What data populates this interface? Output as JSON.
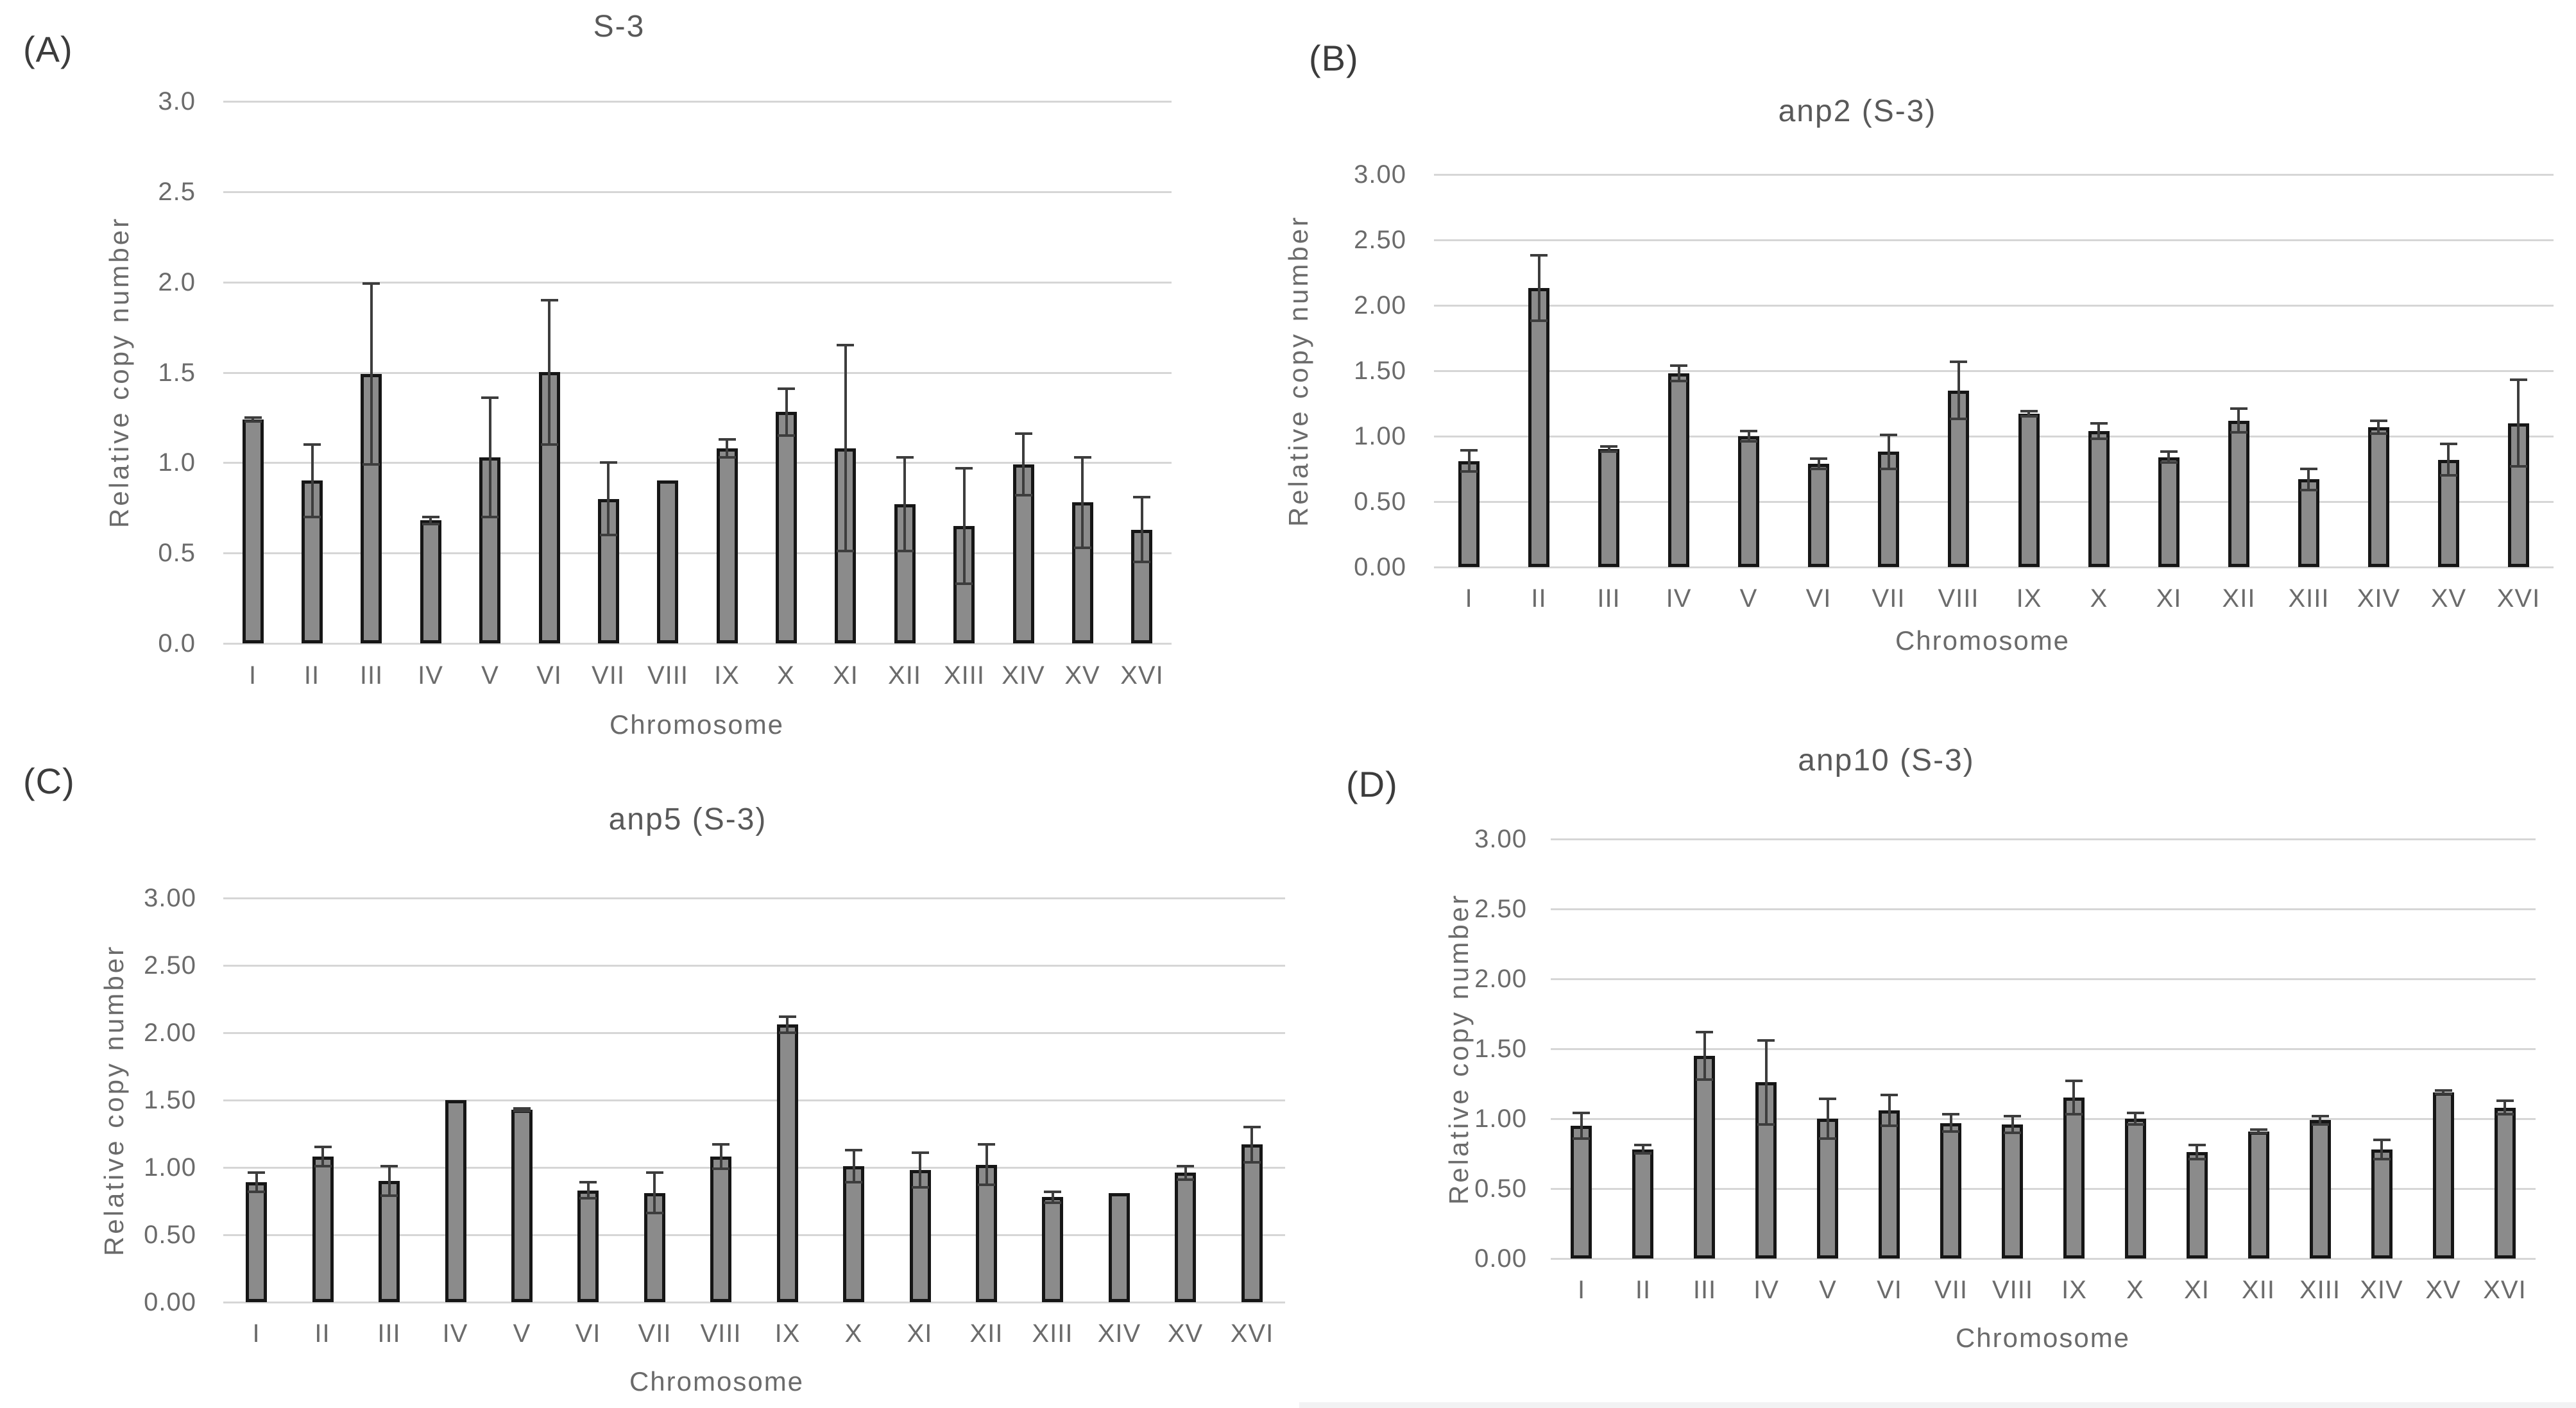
{
  "figure": {
    "background": "#ffffff"
  },
  "colors": {
    "bar_fill": "#8b8b8b",
    "bar_border": "#161616",
    "error_bar": "#3d3d3d",
    "gridline": "#d6d6d6",
    "tick_text": "#6b6b6b",
    "title_text": "#595959",
    "panel_label_text": "#3c3c3c",
    "footer_strip": "#f2f2f3"
  },
  "chart_data": [
    {
      "panel_label": "(A)",
      "type": "bar",
      "title": "S-3",
      "xlabel": "Chromosome",
      "ylabel": "Relative copy number",
      "ylim": [
        0,
        3
      ],
      "grid": true,
      "legend": "none",
      "ytick_labels": [
        "3.0",
        "2.5",
        "2.0",
        "1.5",
        "1.0",
        "0.5",
        "0.0"
      ],
      "categories": [
        "I",
        "II",
        "III",
        "IV",
        "V",
        "VI",
        "VII",
        "VIII",
        "IX",
        "X",
        "XI",
        "XII",
        "XIII",
        "XIV",
        "XV",
        "XVI"
      ],
      "values": [
        1.24,
        0.9,
        1.49,
        0.68,
        1.03,
        1.5,
        0.8,
        0.9,
        1.08,
        1.28,
        1.08,
        0.77,
        0.65,
        0.99,
        0.78,
        0.63
      ],
      "errors": [
        0.01,
        0.2,
        0.5,
        0.02,
        0.33,
        0.4,
        0.2,
        0,
        0.05,
        0.13,
        0.57,
        0.26,
        0.32,
        0.17,
        0.25,
        0.18
      ]
    },
    {
      "panel_label": "(B)",
      "type": "bar",
      "title": "anp2 (S-3)",
      "xlabel": "Chromosome",
      "ylabel": "Relative copy number",
      "ylim": [
        0,
        3
      ],
      "grid": true,
      "legend": "none",
      "ytick_labels": [
        "3.00",
        "2.50",
        "2.00",
        "1.50",
        "1.00",
        "0.50",
        "0.00"
      ],
      "categories": [
        "I",
        "II",
        "III",
        "IV",
        "V",
        "VI",
        "VII",
        "VIII",
        "IX",
        "X",
        "XI",
        "XII",
        "XIII",
        "XIV",
        "XV",
        "XVI"
      ],
      "values": [
        0.81,
        2.13,
        0.9,
        1.48,
        1.0,
        0.79,
        0.88,
        1.35,
        1.17,
        1.04,
        0.84,
        1.12,
        0.67,
        1.07,
        0.82,
        1.1
      ],
      "errors": [
        0.08,
        0.25,
        0.02,
        0.06,
        0.04,
        0.04,
        0.13,
        0.22,
        0.02,
        0.06,
        0.04,
        0.09,
        0.08,
        0.05,
        0.12,
        0.33
      ]
    },
    {
      "panel_label": "(C)",
      "type": "bar",
      "title": "anp5 (S-3)",
      "xlabel": "Chromosome",
      "ylabel": "Relative copy number",
      "ylim": [
        0,
        3
      ],
      "grid": true,
      "legend": "none",
      "ytick_labels": [
        "3.00",
        "2.50",
        "2.00",
        "1.50",
        "1.00",
        "0.50",
        "0.00"
      ],
      "categories": [
        "I",
        "II",
        "III",
        "IV",
        "V",
        "VI",
        "VII",
        "VIII",
        "IX",
        "X",
        "XI",
        "XII",
        "XIII",
        "XIV",
        "XV",
        "XVI"
      ],
      "values": [
        0.89,
        1.08,
        0.9,
        1.5,
        1.43,
        0.83,
        0.81,
        1.08,
        2.06,
        1.01,
        0.98,
        1.02,
        0.78,
        0.81,
        0.96,
        1.17
      ],
      "errors": [
        0.07,
        0.07,
        0.11,
        0,
        0.01,
        0.06,
        0.15,
        0.09,
        0.06,
        0.12,
        0.13,
        0.15,
        0.04,
        0,
        0.05,
        0.13
      ]
    },
    {
      "panel_label": "(D)",
      "type": "bar",
      "title": "anp10 (S-3)",
      "xlabel": "Chromosome",
      "ylabel": "Relative copy number",
      "ylim": [
        0,
        3
      ],
      "grid": true,
      "legend": "none",
      "ytick_labels": [
        "3.00",
        "2.50",
        "2.00",
        "1.50",
        "1.00",
        "0.50",
        "0.00"
      ],
      "categories": [
        "I",
        "II",
        "III",
        "IV",
        "V",
        "VI",
        "VII",
        "VIII",
        "IX",
        "X",
        "XI",
        "XII",
        "XIII",
        "XIV",
        "XV",
        "XVI"
      ],
      "values": [
        0.95,
        0.78,
        1.45,
        1.26,
        1.0,
        1.06,
        0.97,
        0.96,
        1.15,
        1.0,
        0.76,
        0.91,
        0.99,
        0.78,
        1.19,
        1.08
      ],
      "errors": [
        0.09,
        0.03,
        0.17,
        0.3,
        0.14,
        0.11,
        0.06,
        0.06,
        0.12,
        0.04,
        0.05,
        0.01,
        0.03,
        0.07,
        0.01,
        0.05
      ]
    }
  ]
}
